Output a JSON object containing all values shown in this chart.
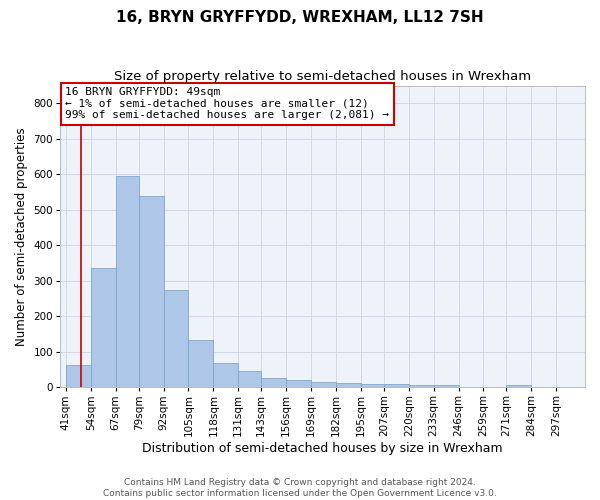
{
  "title": "16, BRYN GRYFFYDD, WREXHAM, LL12 7SH",
  "subtitle": "Size of property relative to semi-detached houses in Wrexham",
  "xlabel": "Distribution of semi-detached houses by size in Wrexham",
  "ylabel": "Number of semi-detached properties",
  "footer_line1": "Contains HM Land Registry data © Crown copyright and database right 2024.",
  "footer_line2": "Contains public sector information licensed under the Open Government Licence v3.0.",
  "annotation_title": "16 BRYN GRYFFYDD: 49sqm",
  "annotation_line1": "← 1% of semi-detached houses are smaller (12)",
  "annotation_line2": "99% of semi-detached houses are larger (2,081) →",
  "property_size": 49,
  "bar_left_edges": [
    41,
    54,
    67,
    79,
    92,
    105,
    118,
    131,
    143,
    156,
    169,
    182,
    195,
    207,
    220,
    233,
    246,
    259,
    271,
    284
  ],
  "bar_widths": [
    13,
    13,
    12,
    13,
    13,
    13,
    13,
    12,
    13,
    13,
    13,
    13,
    12,
    13,
    13,
    13,
    13,
    12,
    13,
    13
  ],
  "bar_heights": [
    62,
    335,
    595,
    540,
    275,
    133,
    68,
    46,
    27,
    20,
    16,
    13,
    9,
    9,
    8,
    8,
    0,
    0,
    8,
    0
  ],
  "bar_color": "#aec6e8",
  "bar_edge_color": "#7fa8cc",
  "vline_color": "#cc0000",
  "vline_x": 49,
  "ylim": [
    0,
    850
  ],
  "yticks": [
    0,
    100,
    200,
    300,
    400,
    500,
    600,
    700,
    800
  ],
  "tick_labels": [
    "41sqm",
    "54sqm",
    "67sqm",
    "79sqm",
    "92sqm",
    "105sqm",
    "118sqm",
    "131sqm",
    "143sqm",
    "156sqm",
    "169sqm",
    "182sqm",
    "195sqm",
    "207sqm",
    "220sqm",
    "233sqm",
    "246sqm",
    "259sqm",
    "271sqm",
    "284sqm",
    "297sqm"
  ],
  "grid_color": "#d0d8e8",
  "bg_color": "#eef2f9",
  "annotation_box_color": "#ffffff",
  "annotation_box_edge": "#cc0000",
  "title_fontsize": 11,
  "subtitle_fontsize": 9.5,
  "xlabel_fontsize": 9,
  "ylabel_fontsize": 8.5,
  "tick_fontsize": 7.5,
  "annotation_fontsize": 8,
  "footer_fontsize": 6.5
}
